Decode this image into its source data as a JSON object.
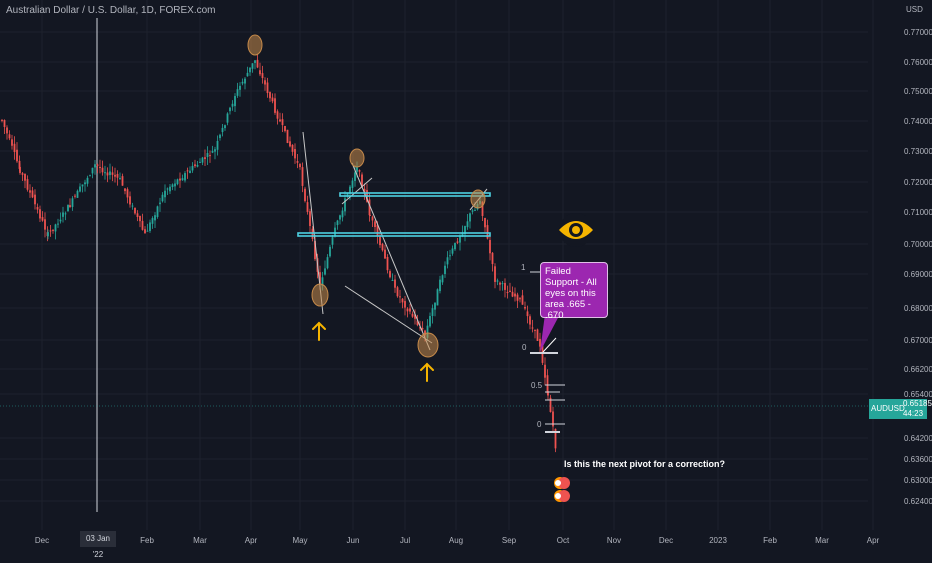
{
  "header": {
    "title": "Australian Dollar / U.S. Dollar, 1D, FOREX.com"
  },
  "price_axis": {
    "currency": "USD",
    "ticks": [
      "0.77000",
      "0.76000",
      "0.75000",
      "0.74000",
      "0.73000",
      "0.72000",
      "0.71000",
      "0.70000",
      "0.69000",
      "0.68000",
      "0.67000",
      "0.66200",
      "0.65400",
      "0.64200",
      "0.63600",
      "0.63000",
      "0.62400"
    ]
  },
  "price_tag": {
    "symbol": "AUDUSD",
    "value": "0.65185",
    "countdown": "44:23"
  },
  "time_axis": {
    "ticks": [
      "Dec",
      "Feb",
      "Mar",
      "Apr",
      "May",
      "Jun",
      "Jul",
      "Aug",
      "Sep",
      "Oct",
      "Nov",
      "Dec",
      "2023",
      "Feb",
      "Mar",
      "Apr"
    ],
    "highlighted": "03 Jan '22"
  },
  "fib_levels": [
    "1",
    "0.5",
    "0"
  ],
  "lower_fib_levels": [
    "0"
  ],
  "annotations": {
    "callout": "Failed Support - All eyes on this area .665 - .670",
    "question": "Is this the next pivot for a correction?"
  },
  "icons": [
    "eye-icon",
    "up-arrow-icon",
    "up-arrow-icon",
    "event-icon"
  ],
  "colors": {
    "background": "#131722",
    "bull": "#26a69a",
    "bear": "#ef5350",
    "support_line": "#4dd0e1",
    "callout": "#9c27b0",
    "arrow": "#f5b400",
    "circle": "#c68a4a"
  }
}
